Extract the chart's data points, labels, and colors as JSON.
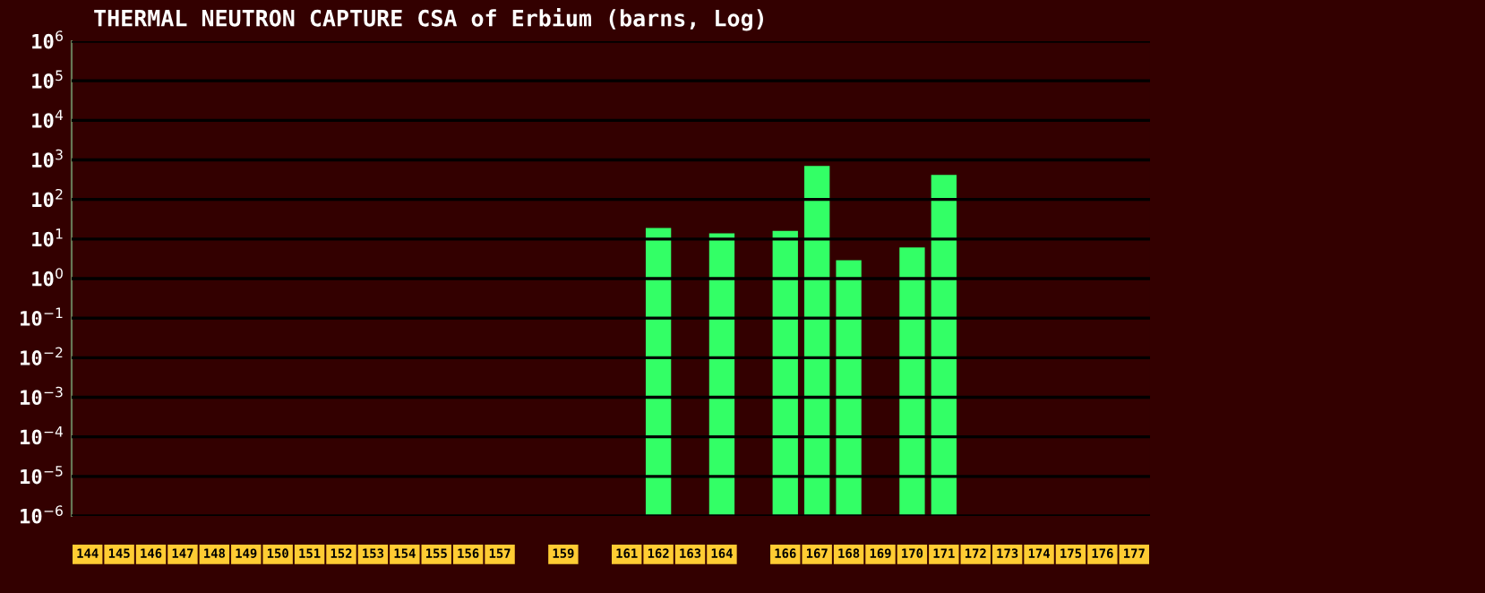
{
  "chart_data": {
    "type": "bar",
    "title": "THERMAL NEUTRON CAPTURE CSA of Erbium (barns, Log)",
    "categories": [
      "144",
      "145",
      "146",
      "147",
      "148",
      "149",
      "150",
      "151",
      "152",
      "153",
      "154",
      "155",
      "156",
      "157",
      null,
      "159",
      null,
      "161",
      "162",
      "163",
      "164",
      null,
      "166",
      "167",
      "168",
      "169",
      "170",
      "171",
      "172",
      "173",
      "174",
      "175",
      "176",
      "177"
    ],
    "values": [
      null,
      null,
      null,
      null,
      null,
      null,
      null,
      null,
      null,
      null,
      null,
      null,
      null,
      null,
      null,
      null,
      null,
      null,
      19,
      null,
      14,
      null,
      16,
      700,
      2.9,
      null,
      6.1,
      415,
      null,
      null,
      null,
      null,
      null,
      null
    ],
    "color": "#33ff66",
    "log": "y",
    "ylim": [
      1e-06,
      1000000.0
    ],
    "yticks": [
      {
        "value": 1e-06,
        "label": "10$^{−6}$"
      },
      {
        "value": 1e-05,
        "label": "10$^{−5}$"
      },
      {
        "value": 0.0001,
        "label": "10$^{−4}$"
      },
      {
        "value": 0.001,
        "label": "10$^{−3}$"
      },
      {
        "value": 0.01,
        "label": "10$^{−2}$"
      },
      {
        "value": 0.1,
        "label": "10$^{−1}$"
      },
      {
        "value": 1,
        "label": "10$^{0}$"
      },
      {
        "value": 10,
        "label": "10$^{1}$"
      },
      {
        "value": 100,
        "label": "10$^{2}$"
      },
      {
        "value": 1000,
        "label": "10$^{3}$"
      },
      {
        "value": 10000,
        "label": "10$^{4}$"
      },
      {
        "value": 100000,
        "label": "10$^{5}$"
      },
      {
        "value": 1000000,
        "label": "10$^{6}$"
      }
    ],
    "grid": "y"
  }
}
